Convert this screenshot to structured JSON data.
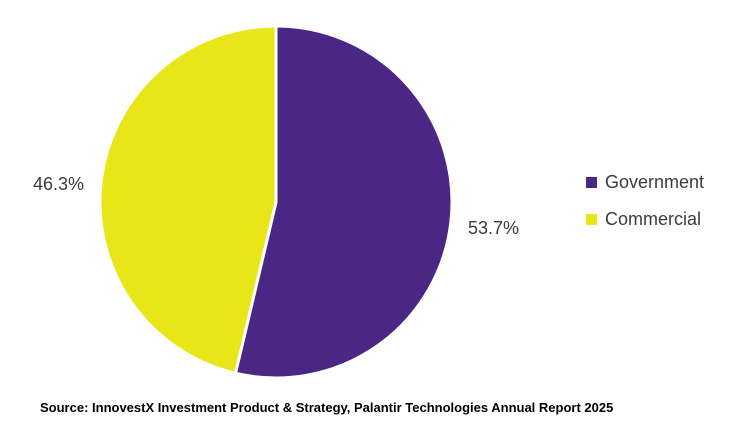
{
  "chart_data": {
    "type": "pie",
    "slices": [
      {
        "label": "Government",
        "value": 53.7,
        "value_label": "53.7%",
        "color": "#4b2785"
      },
      {
        "label": "Commercial",
        "value": 46.3,
        "value_label": "46.3%",
        "color": "#e8e519"
      }
    ],
    "start_angle": "12 o'clock",
    "direction": "clockwise",
    "legend": {
      "position": "right",
      "items": [
        "Government",
        "Commercial"
      ]
    }
  },
  "source_note": "Source: InnovestX Investment Product & Strategy, Palantir Technologies Annual Report 2025"
}
